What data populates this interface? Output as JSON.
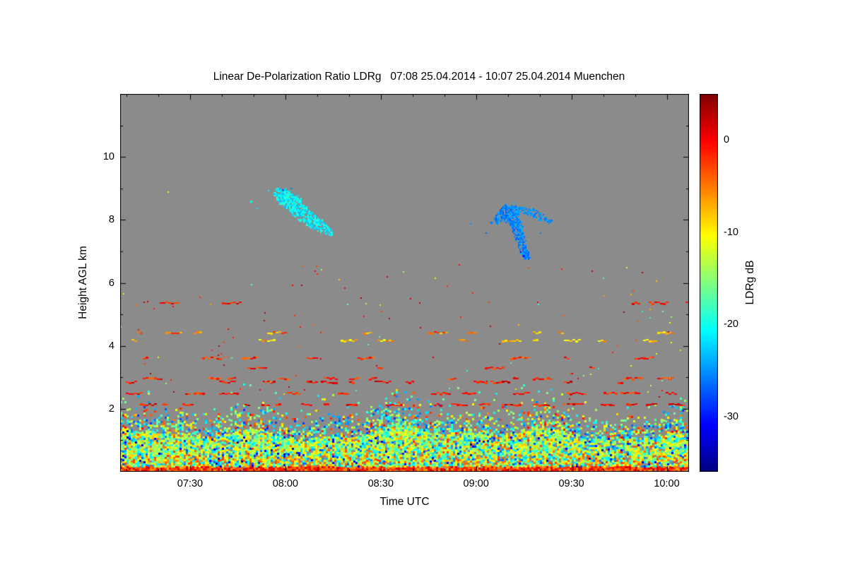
{
  "page": {
    "background": "#ffffff"
  },
  "chart_data": {
    "type": "heatmap",
    "instrument_quantity": "Linear De-Polarization Ratio",
    "title": "Linear De-Polarization Ratio LDRg   07:08 25.04.2014 - 10:07 25.04.2014 Muenchen",
    "xlabel": "Time UTC",
    "ylabel": "Height AGL km",
    "colorbar_label": "LDRg dB",
    "time_start_utc": "07:08",
    "time_end_utc": "10:07",
    "date": "25.04.2014",
    "station": "Muenchen",
    "x_range_minutes": [
      428,
      607
    ],
    "x_ticks": [
      {
        "minute": 450,
        "label": "07:30"
      },
      {
        "minute": 480,
        "label": "08:00"
      },
      {
        "minute": 510,
        "label": "08:30"
      },
      {
        "minute": 540,
        "label": "09:00"
      },
      {
        "minute": 570,
        "label": "09:30"
      },
      {
        "minute": 600,
        "label": "10:00"
      }
    ],
    "x_minor_step_min": 10,
    "y_range_km": [
      0,
      12
    ],
    "y_ticks": [
      {
        "km": 2,
        "label": "2"
      },
      {
        "km": 4,
        "label": "4"
      },
      {
        "km": 6,
        "label": "6"
      },
      {
        "km": 8,
        "label": "8"
      },
      {
        "km": 10,
        "label": "10"
      }
    ],
    "y_minor_step_km": 1,
    "value_range_db": [
      -36,
      5
    ],
    "colorbar_ticks": [
      {
        "db": 0,
        "label": "0"
      },
      {
        "db": -10,
        "label": "-10"
      },
      {
        "db": -20,
        "label": "-20"
      },
      {
        "db": -30,
        "label": "-30"
      }
    ],
    "colormap": "jet",
    "plot_bg": "#8b8b8b",
    "frame_color": "#000000",
    "features": {
      "boundary_layer": {
        "description": "Dense speckled boundary-layer / aerosol echo near the surface",
        "top_km": 2.2,
        "dense_top_km": 1.25,
        "surface_band_km": 0.18,
        "surface_values_db": [
          -7,
          2
        ],
        "dense_values_db": [
          -28,
          -3
        ],
        "diffuse_values_db": [
          -34,
          0
        ]
      },
      "cirrus_clouds": [
        {
          "name": "fall-streak cirrus near 08:00-08:15",
          "time_span_utc": [
            "07:57",
            "08:15"
          ],
          "height_span_km": [
            7.5,
            9.1
          ],
          "values_db_center": -21,
          "values_db_spread": 5,
          "density": 0.82,
          "path": [
            [
              477.5,
              8.85,
              1.6,
              0.2
            ],
            [
              480.0,
              8.7,
              2.3,
              0.33
            ],
            [
              482.5,
              8.5,
              2.6,
              0.38
            ],
            [
              485.0,
              8.25,
              2.4,
              0.34
            ],
            [
              488.0,
              8.0,
              2.0,
              0.28
            ],
            [
              491.0,
              7.82,
              1.7,
              0.22
            ],
            [
              494.0,
              7.62,
              1.2,
              0.13
            ]
          ]
        },
        {
          "name": "hooked cirrus near 09:05-09:20",
          "time_span_utc": [
            "09:04",
            "09:20"
          ],
          "height_span_km": [
            6.8,
            8.5
          ],
          "values_db_center": -25.5,
          "values_db_spread": 4,
          "density": 0.85,
          "path": [
            [
              546.5,
              8.05,
              1.1,
              0.18
            ],
            [
              549.0,
              8.25,
              1.7,
              0.3
            ],
            [
              551.5,
              8.15,
              2.1,
              0.45
            ],
            [
              553.0,
              7.7,
              1.7,
              0.5
            ],
            [
              554.2,
              7.25,
              1.3,
              0.38
            ],
            [
              555.2,
              6.95,
              1.0,
              0.2
            ],
            [
              556.5,
              6.85,
              0.8,
              0.1
            ]
          ]
        },
        {
          "name": "thin cirrus arm near 09:15-09:25",
          "time_span_utc": [
            "09:13",
            "09:25"
          ],
          "height_span_km": [
            7.9,
            8.4
          ],
          "values_db_center": -25,
          "values_db_spread": 3,
          "density": 0.7,
          "path": [
            [
              553.5,
              8.35,
              0.9,
              0.1
            ],
            [
              556.0,
              8.3,
              1.4,
              0.14
            ],
            [
              558.5,
              8.2,
              1.5,
              0.13
            ],
            [
              561.0,
              8.05,
              1.2,
              0.12
            ],
            [
              563.0,
              7.98,
              0.7,
              0.09
            ]
          ]
        }
      ],
      "aerosol_streaks": [
        {
          "h_km": 2.12,
          "density": 0.55,
          "values_db": [
            -3,
            3
          ]
        },
        {
          "h_km": 2.5,
          "density": 0.22,
          "values_db": [
            -4,
            2
          ]
        },
        {
          "h_km": 2.85,
          "density": 0.3,
          "values_db": [
            -3,
            3
          ]
        },
        {
          "h_km": 2.95,
          "density": 0.18,
          "values_db": [
            -5,
            1
          ]
        },
        {
          "h_km": 3.3,
          "density": 0.1,
          "values_db": [
            -4,
            2
          ]
        },
        {
          "h_km": 3.62,
          "density": 0.12,
          "values_db": [
            -5,
            1
          ]
        },
        {
          "h_km": 4.18,
          "density": 0.15,
          "values_db": [
            -12,
            -4
          ]
        },
        {
          "h_km": 4.42,
          "density": 0.16,
          "values_db": [
            -10,
            -1
          ]
        },
        {
          "h_km": 5.35,
          "density": 0.05,
          "values_db": [
            -3,
            2
          ]
        }
      ],
      "isolated_dots": [
        {
          "t_min": 443.0,
          "km": 8.9,
          "db": -12,
          "size": 2
        },
        {
          "t_min": 469.0,
          "km": 8.62,
          "db": -20,
          "size": 3
        },
        {
          "t_min": 471.0,
          "km": 8.4,
          "db": -22,
          "size": 2
        },
        {
          "t_min": 474.5,
          "km": 8.95,
          "db": -21,
          "size": 2
        },
        {
          "t_min": 479.0,
          "km": 8.98,
          "db": -27,
          "size": 3
        },
        {
          "t_min": 481.5,
          "km": 9.02,
          "db": -26,
          "size": 2
        },
        {
          "t_min": 538.0,
          "km": 7.9,
          "db": -25,
          "size": 2
        },
        {
          "t_min": 543.0,
          "km": 7.6,
          "db": -27,
          "size": 2
        },
        {
          "t_min": 544.5,
          "km": 7.95,
          "db": -26,
          "size": 3
        },
        {
          "t_min": 553.8,
          "km": 7.0,
          "db": -31,
          "size": 2
        },
        {
          "t_min": 554.8,
          "km": 6.88,
          "db": -30,
          "size": 3
        },
        {
          "t_min": 560.0,
          "km": 7.6,
          "db": -26,
          "size": 2
        }
      ],
      "sparse_specks": {
        "count": 130,
        "height_range_km": [
          2.3,
          6.6
        ]
      }
    }
  }
}
